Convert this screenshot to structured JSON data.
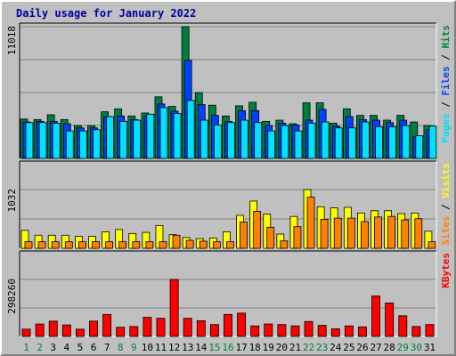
{
  "chart_data": {
    "type": "bar",
    "title": "Daily usage for January 2022",
    "categories": [
      "1",
      "2",
      "3",
      "4",
      "5",
      "6",
      "7",
      "8",
      "9",
      "10",
      "11",
      "12",
      "13",
      "14",
      "15",
      "16",
      "17",
      "18",
      "19",
      "20",
      "21",
      "22",
      "23",
      "24",
      "25",
      "26",
      "27",
      "28",
      "29",
      "30",
      "31"
    ],
    "weekend_days": [
      "1",
      "2",
      "8",
      "9",
      "15",
      "16",
      "22",
      "23",
      "29",
      "30"
    ],
    "colors": {
      "hits": "#008040",
      "files": "#0040ff",
      "pages": "#00e0ff",
      "visits": "#ffff00",
      "sites": "#ff8000",
      "kbytes": "#ff0000",
      "weekday_label": "#000000",
      "weekend_label": "#008040"
    },
    "panels": [
      {
        "id": "hits",
        "max_label": "11018",
        "ylim": [
          0,
          11018
        ],
        "legend": [
          {
            "text": "Pages",
            "color": "#00e0ff"
          },
          {
            "text": " / ",
            "color": "#000000"
          },
          {
            "text": "Files",
            "color": "#0040ff"
          },
          {
            "text": " / ",
            "color": "#000000"
          },
          {
            "text": "Hits",
            "color": "#008040"
          }
        ],
        "series": [
          {
            "name": "Hits",
            "color": "#008040",
            "values": [
              3300,
              3250,
              3650,
              3250,
              2750,
              2750,
              3900,
              4150,
              3550,
              3800,
              5150,
              4350,
              11018,
              5500,
              4450,
              3550,
              4400,
              4700,
              3100,
              3200,
              2900,
              4650,
              4650,
              2950,
              4150,
              3600,
              3600,
              3200,
              3600,
              3050,
              2750
            ]
          },
          {
            "name": "Files",
            "color": "#0040ff",
            "values": [
              3050,
              3100,
              3100,
              2900,
              2550,
              2550,
              3500,
              3550,
              3250,
              3550,
              4550,
              3950,
              8200,
              4500,
              3600,
              3100,
              4000,
              4000,
              2750,
              2950,
              2800,
              3200,
              4100,
              2700,
              3500,
              3250,
              3200,
              3000,
              3200,
              1800,
              2400
            ]
          },
          {
            "name": "Pages",
            "color": "#00e0ff",
            "values": [
              3000,
              3000,
              2950,
              2300,
              2300,
              2400,
              3500,
              3100,
              3200,
              3700,
              4250,
              3750,
              4850,
              3200,
              2800,
              3000,
              3200,
              3000,
              2300,
              2750,
              2300,
              2950,
              3050,
              2550,
              2550,
              3050,
              2650,
              2650,
              2750,
              1900,
              2700
            ]
          }
        ]
      },
      {
        "id": "visits",
        "max_label": "1032",
        "ylim": [
          0,
          1032
        ],
        "legend": [
          {
            "text": "Sites",
            "color": "#ff8000"
          },
          {
            "text": " / ",
            "color": "#000000"
          },
          {
            "text": "Visits",
            "color": "#ffff00"
          }
        ],
        "series": [
          {
            "name": "Visits",
            "color": "#ffff00",
            "values": [
              315,
              230,
              230,
              230,
              210,
              210,
              290,
              330,
              260,
              280,
              400,
              240,
              190,
              170,
              180,
              290,
              580,
              830,
              600,
              250,
              560,
              1032,
              730,
              710,
              720,
              620,
              660,
              660,
              610,
              620,
              300
            ]
          },
          {
            "name": "Sites",
            "color": "#ff8000",
            "values": [
              115,
              115,
              115,
              115,
              115,
              115,
              115,
              115,
              115,
              115,
              115,
              230,
              140,
              125,
              115,
              115,
              460,
              650,
              370,
              130,
              380,
              900,
              510,
              530,
              530,
              470,
              550,
              560,
              500,
              520,
              115
            ]
          }
        ]
      },
      {
        "id": "kbytes",
        "max_label": "298260",
        "ylim": [
          0,
          298260
        ],
        "legend": [
          {
            "text": "KBytes",
            "color": "#ff0000"
          }
        ],
        "series": [
          {
            "name": "KBytes",
            "color": "#ff0000",
            "values": [
              38000,
              65000,
              80000,
              60000,
              38000,
              80000,
              115000,
              48000,
              52000,
              100000,
              95000,
              298260,
              95000,
              82000,
              62000,
              115000,
              122000,
              55000,
              65000,
              62000,
              55000,
              78000,
              58000,
              40000,
              55000,
              50000,
              212000,
              175000,
              108000,
              52000,
              62000
            ]
          }
        ]
      }
    ]
  }
}
